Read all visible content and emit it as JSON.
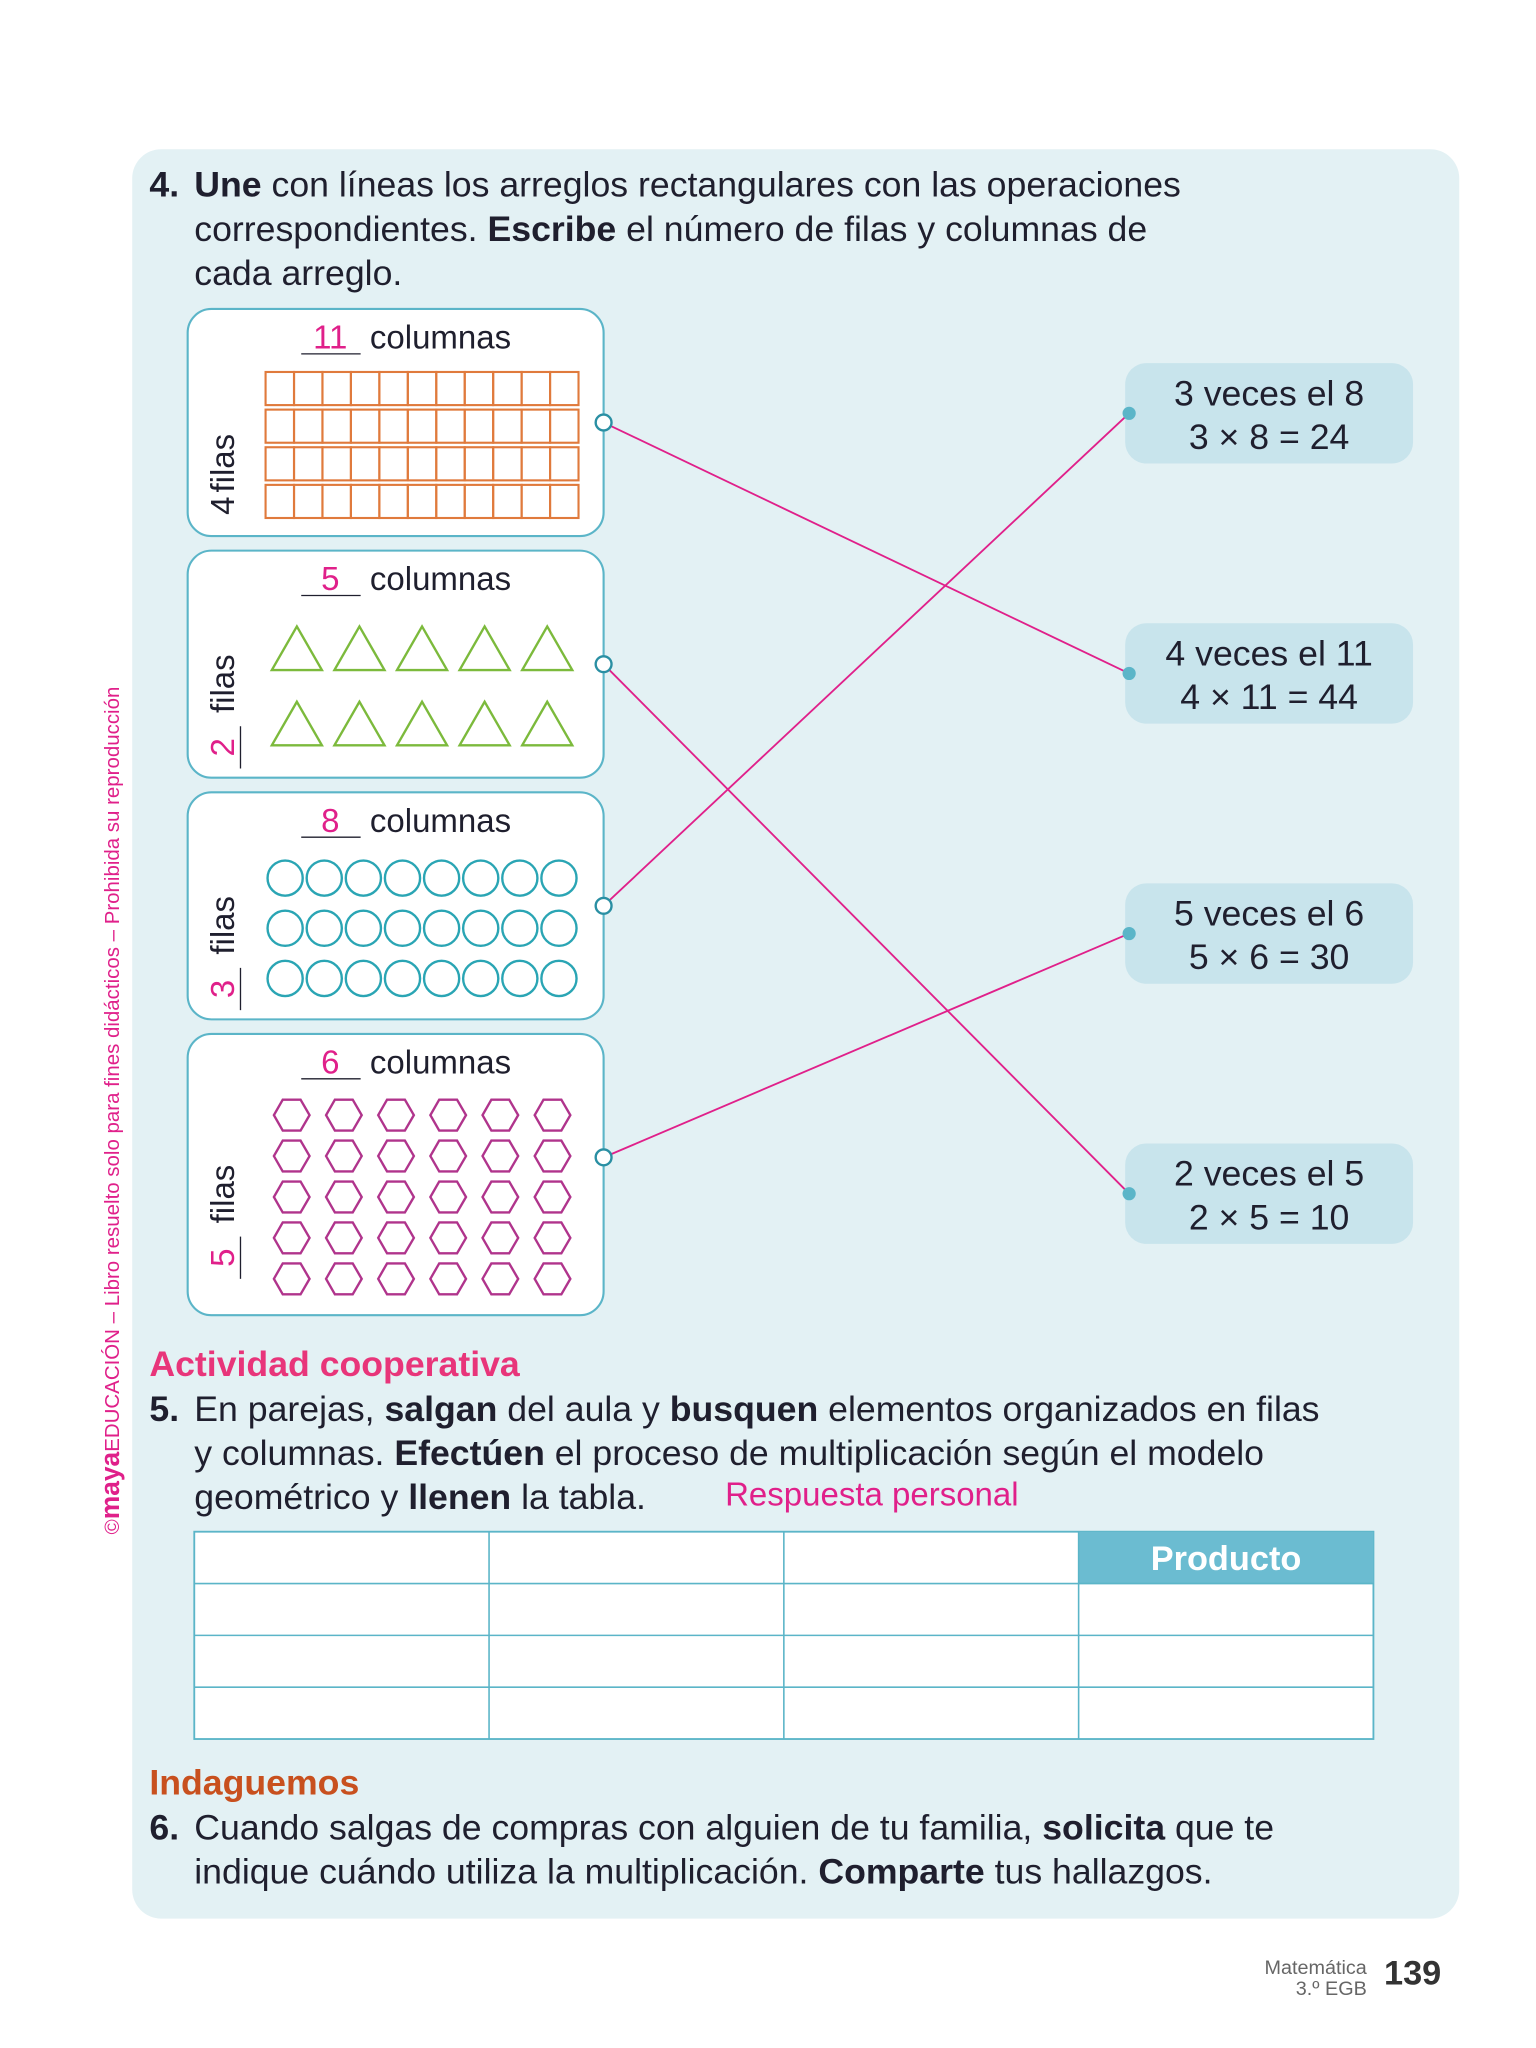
{
  "side_note": {
    "copyright": "©",
    "brand": "maya",
    "text": "EDUCACIÓN – Libro resuelto solo para fines didácticos – Prohibida su reproducción"
  },
  "exercise4": {
    "number": "4.",
    "lines": [
      [
        {
          "text": "Une",
          "bold": true
        },
        {
          "text": " con líneas los arreglos rectangulares con las operaciones"
        }
      ],
      [
        {
          "text": "correspondientes. "
        },
        {
          "text": "Escribe",
          "bold": true
        },
        {
          "text": " el número de filas y columnas de"
        }
      ],
      [
        {
          "text": "cada arreglo."
        }
      ]
    ],
    "arrays": [
      {
        "columns": 11,
        "columns_label": "columnas",
        "rows": 4,
        "rows_label": "filas",
        "shape": "square",
        "color": "#e07a3c",
        "underlined": false,
        "match": 1
      },
      {
        "columns": 5,
        "columns_label": "columnas",
        "rows": 2,
        "rows_label": "filas",
        "shape": "triangle",
        "color": "#7cba3c",
        "underlined": true,
        "match": 3
      },
      {
        "columns": 8,
        "columns_label": "columnas",
        "rows": 3,
        "rows_label": "filas",
        "shape": "circle",
        "color": "#2aa5b4",
        "underlined": true,
        "match": 0
      },
      {
        "columns": 6,
        "columns_label": "columnas",
        "rows": 5,
        "rows_label": "filas",
        "shape": "hexagon",
        "color": "#b0348c",
        "underlined": true,
        "match": 2
      }
    ],
    "operations": [
      {
        "line1": "3 veces el 8",
        "line2": "3 × 8 = 24"
      },
      {
        "line1": "4 veces el 11",
        "line2": "4 × 11 = 44"
      },
      {
        "line1": "5 veces el 6",
        "line2": "5 × 6 = 30"
      },
      {
        "line1": "2 veces el 5",
        "line2": "2 × 5 = 10"
      }
    ]
  },
  "section1": "Actividad cooperativa",
  "exercise5": {
    "number": "5.",
    "lines": [
      [
        {
          "text": "En parejas, "
        },
        {
          "text": "salgan",
          "bold": true
        },
        {
          "text": " del aula y "
        },
        {
          "text": "busquen",
          "bold": true
        },
        {
          "text": " elementos organizados en filas"
        }
      ],
      [
        {
          "text": "y columnas. "
        },
        {
          "text": "Efectúen",
          "bold": true
        },
        {
          "text": " el proceso de multiplicación según el modelo"
        }
      ],
      [
        {
          "text": "geométrico y "
        },
        {
          "text": "llenen",
          "bold": true
        },
        {
          "text": " la tabla."
        }
      ]
    ],
    "answer": "Respuesta personal",
    "table": {
      "header": [
        null,
        null,
        null,
        "Producto"
      ],
      "rows": 3
    }
  },
  "section2": "Indaguemos",
  "exercise6": {
    "number": "6.",
    "lines": [
      [
        {
          "text": "Cuando salgas de compras con alguien de tu familia, "
        },
        {
          "text": "solicita",
          "bold": true
        },
        {
          "text": " que te"
        }
      ],
      [
        {
          "text": "indique cuándo utiliza la multiplicación. "
        },
        {
          "text": "Comparte",
          "bold": true
        },
        {
          "text": " tus hallazgos."
        }
      ]
    ]
  },
  "footer": {
    "subject": "Matemática",
    "grade": "3.º EGB",
    "page": "139"
  }
}
